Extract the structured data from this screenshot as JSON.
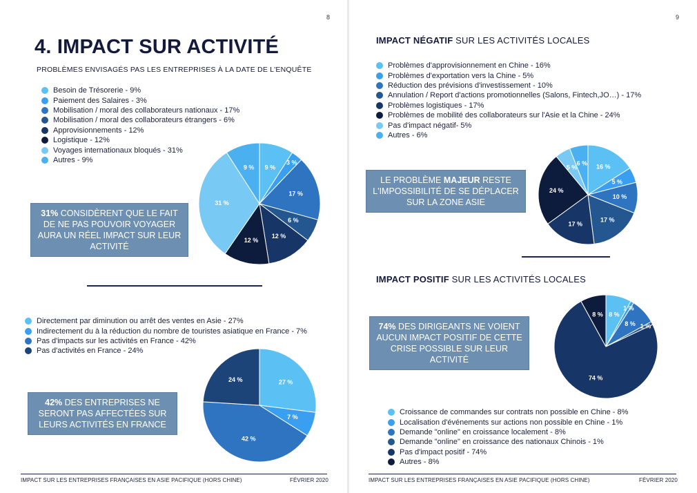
{
  "left_page": {
    "page_number": "8",
    "title": "4. IMPACT SUR ACTIVITÉ",
    "subtitle": "PROBLÈMES ENVISAGÉS PAS LES ENTREPRISES À LA DATE DE L'ENQUÊTE",
    "problems_legend": [
      {
        "label": "Besoin de Trésorerie - 9%",
        "color": "#5bc0f3"
      },
      {
        "label": "Paiement des Salaires - 3%",
        "color": "#3a9ff0"
      },
      {
        "label": "Mobilisation / moral des collaborateurs nationaux - 17%",
        "color": "#2f74c0"
      },
      {
        "label": "Mobilisation / moral des collaborateurs étrangers - 6%",
        "color": "#24578f"
      },
      {
        "label": "Approvisionnements - 12%",
        "color": "#173566"
      },
      {
        "label": "Logistique - 12%",
        "color": "#0d1b3c"
      },
      {
        "label": "Voyages internationaux bloqués - 31%",
        "color": "#79c9f5"
      },
      {
        "label": "Autres - 9%",
        "color": "#4ab0f0"
      }
    ],
    "callout1": {
      "strong": "31%",
      "rest": " CONSIDÈRENT QUE LE FAIT DE NE PAS POUVOIR VOYAGER AURA UN RÉEL IMPACT SUR LEUR ACTIVITÉ"
    },
    "activity_legend": [
      {
        "label": "Directement par diminution ou arrêt des ventes en Asie - 27%",
        "color": "#5bc0f3"
      },
      {
        "label": "Indirectement du à la réduction du nombre de touristes asiatique en France - 7%",
        "color": "#3a9ff0"
      },
      {
        "label": "Pas d'impacts sur les activités en France - 42%",
        "color": "#2f74c0"
      },
      {
        "label": "Pas d'activités en France - 24%",
        "color": "#1d4478"
      }
    ],
    "callout2": {
      "strong": "42%",
      "rest": " DES ENTREPRISES NE SERONT PAS AFFECTÉES SUR LEURS ACTIVITÉS EN FRANCE"
    },
    "footer_left": "IMPACT SUR LES ENTREPRISES FRANÇAISES EN ASIE PACIFIQUE (HORS CHINE)",
    "footer_right": "FÉVRIER 2020"
  },
  "right_page": {
    "page_number": "9",
    "negative_heading": {
      "strong": "IMPACT NÉGATIF",
      "rest": " SUR LES ACTIVITÉS LOCALES"
    },
    "negative_legend": [
      {
        "label": "Problèmes d'approvisionnement en Chine - 16%",
        "color": "#5bc0f3"
      },
      {
        "label": "Problèmes d'exportation vers la Chine - 5%",
        "color": "#3a9ff0"
      },
      {
        "label": "Réduction des prévisions d'investissement - 10%",
        "color": "#2f74c0"
      },
      {
        "label": "Annulation / Report d'actions promotionnelles (Salons, Fintech,JO…) - 17%",
        "color": "#24578f"
      },
      {
        "label": "Problèmes logistiques - 17%",
        "color": "#173566"
      },
      {
        "label": "Problèmes de mobilité des collaborateurs sur l'Asie et la Chine - 24%",
        "color": "#0d1b3c"
      },
      {
        "label": "Pas d'impact négatif- 5%",
        "color": "#79c9f5"
      },
      {
        "label": "Autres - 6%",
        "color": "#4ab0f0"
      }
    ],
    "callout3": {
      "pre": "LE PROBLÈME ",
      "strong": "MAJEUR",
      "rest": " RESTE L'IMPOSSIBILITÉ DE SE DÉPLACER SUR LA ZONE ASIE"
    },
    "positive_heading": {
      "strong": "IMPACT POSITIF",
      "rest": " SUR LES ACTIVITÉS LOCALES"
    },
    "callout4": {
      "strong": "74%",
      "rest": " DES DIRIGEANTS NE VOIENT AUCUN IMPACT POSITIF DE CETTE CRISE POSSIBLE SUR LEUR ACTIVITÉ"
    },
    "positive_legend": [
      {
        "label": "Croissance de commandes sur contrats non possible en Chine - 8%",
        "color": "#5bc0f3"
      },
      {
        "label": "Localisation d'événements sur actions non possible en Chine - 1%",
        "color": "#3a9ff0"
      },
      {
        "label": "Demande \"online\" en croissance localement - 8%",
        "color": "#2f74c0"
      },
      {
        "label": "Demande \"online\" en croissance des nationaux Chinois - 1%",
        "color": "#24578f"
      },
      {
        "label": "Pas d'impact positif - 74%",
        "color": "#173566"
      },
      {
        "label": "Autres - 8%",
        "color": "#0d1b3c"
      }
    ],
    "footer_left": "IMPACT SUR LES ENTREPRISES FRANÇAISES EN ASIE PACIFIQUE (HORS CHINE)",
    "footer_right": "FÉVRIER 2020"
  },
  "chart_data": [
    {
      "type": "pie",
      "name": "problems",
      "categories": [
        "Besoin de Trésorerie",
        "Paiement des Salaires",
        "Mobilisation / moral des collaborateurs nationaux",
        "Mobilisation / moral des collaborateurs étrangers",
        "Approvisionnements",
        "Logistique",
        "Voyages internationaux bloqués",
        "Autres"
      ],
      "values": [
        9,
        3,
        17,
        6,
        12,
        12,
        31,
        9
      ],
      "labels": [
        "9 %",
        "3 %",
        "17 %",
        "6 %",
        "12 %",
        "12 %",
        "31 %",
        "9 %"
      ],
      "colors": [
        "#5bc0f3",
        "#3a9ff0",
        "#2f74c0",
        "#24578f",
        "#173566",
        "#0d1b3c",
        "#79c9f5",
        "#4ab0f0"
      ]
    },
    {
      "type": "pie",
      "name": "activities_france",
      "categories": [
        "Directement par diminution ou arrêt des ventes en Asie",
        "Indirectement du à la réduction du nombre de touristes asiatique en France",
        "Pas d'impacts sur les activités en France",
        "Pas d'activités en France"
      ],
      "values": [
        27,
        7,
        42,
        24
      ],
      "labels": [
        "27 %",
        "7 %",
        "42 %",
        "24 %"
      ],
      "colors": [
        "#5bc0f3",
        "#3a9ff0",
        "#2f74c0",
        "#1d4478"
      ]
    },
    {
      "type": "pie",
      "name": "negative_impact",
      "categories": [
        "Problèmes d'approvisionnement en Chine",
        "Problèmes d'exportation vers la Chine",
        "Réduction des prévisions d'investissement",
        "Annulation / Report d'actions promotionnelles",
        "Problèmes logistiques",
        "Problèmes de mobilité des collaborateurs",
        "Pas d'impact négatif",
        "Autres"
      ],
      "values": [
        16,
        5,
        10,
        17,
        17,
        24,
        5,
        6
      ],
      "labels": [
        "16 %",
        "5 %",
        "10 %",
        "17 %",
        "17 %",
        "24 %",
        "5 %",
        "6 %"
      ],
      "colors": [
        "#5bc0f3",
        "#3a9ff0",
        "#2f74c0",
        "#24578f",
        "#173566",
        "#0d1b3c",
        "#79c9f5",
        "#4ab0f0"
      ]
    },
    {
      "type": "pie",
      "name": "positive_impact",
      "categories": [
        "Croissance de commandes sur contrats non possible en Chine",
        "Localisation d'événements sur actions non possible en Chine",
        "Demande \"online\" en croissance localement",
        "Demande \"online\" en croissance des nationaux Chinois",
        "Pas d'impact positif",
        "Autres"
      ],
      "values": [
        8,
        1,
        8,
        1,
        74,
        8
      ],
      "labels": [
        "8 %",
        "1 %",
        "8 %",
        "1 %",
        "74 %",
        "8 %"
      ],
      "colors": [
        "#5bc0f3",
        "#3a9ff0",
        "#2f74c0",
        "#24578f",
        "#173566",
        "#0d1b3c"
      ]
    }
  ]
}
